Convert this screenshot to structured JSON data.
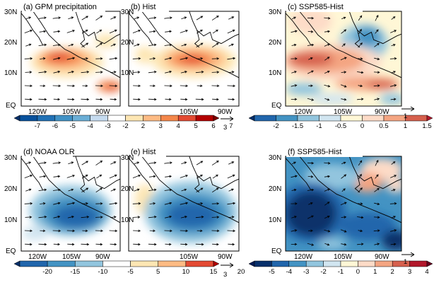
{
  "panels": [
    {
      "id": "a",
      "title": "(a) GPM precipitation",
      "field": "precip_obs",
      "show_ylabels": true
    },
    {
      "id": "b",
      "title": "(b) Hist",
      "field": "precip_hist",
      "show_ylabels": false
    },
    {
      "id": "c",
      "title": "(c) SSP585-Hist",
      "field": "precip_diff",
      "show_ylabels": true
    },
    {
      "id": "d",
      "title": "(d) NOAA OLR",
      "field": "olr_obs",
      "show_ylabels": true
    },
    {
      "id": "e",
      "title": "(e) Hist",
      "field": "olr_hist",
      "show_ylabels": false
    },
    {
      "id": "f",
      "title": "(f) SSP585-Hist",
      "field": "olr_diff",
      "show_ylabels": true
    }
  ],
  "lat_labels": [
    "30N",
    "20N",
    "10N",
    "EQ"
  ],
  "lon_labels": [
    "120W",
    "105W",
    "90W"
  ],
  "colorbars": [
    {
      "id": "precip",
      "ticks": [
        "-7",
        "-6",
        "-5",
        "-4",
        "-3",
        "-2",
        "2",
        "3",
        "4",
        "5",
        "6",
        "7"
      ],
      "colors": [
        "#08306b",
        "#08519c",
        "#2171b5",
        "#4292c6",
        "#6baed6",
        "#c6dbef",
        "#ffffff",
        "#fde6b3",
        "#fdbb84",
        "#f4874b",
        "#e34a33",
        "#b30000",
        "#7f0000"
      ]
    },
    {
      "id": "precip_diff",
      "ticks": [
        "-2",
        "-1.5",
        "-1",
        "-0.5",
        "0",
        "0.5",
        "1",
        "1.5",
        "2"
      ],
      "colors": [
        "#08306b",
        "#2166ac",
        "#4393c3",
        "#92c5de",
        "#d1e5f0",
        "#fff7d6",
        "#fddbc7",
        "#f4a582",
        "#d6604d",
        "#b2182b"
      ]
    },
    {
      "id": "olr",
      "ticks": [
        "-20",
        "-15",
        "-10",
        "-5",
        "5",
        "10",
        "15",
        "20"
      ],
      "colors": [
        "#08306b",
        "#2166ac",
        "#4393c3",
        "#92c5de",
        "#ffffff",
        "#fde6b3",
        "#fdbb84",
        "#e34a33",
        "#b30000"
      ]
    },
    {
      "id": "olr_diff",
      "ticks": [
        "-5",
        "-4",
        "-3",
        "-2",
        "-1",
        "0",
        "1",
        "2",
        "3",
        "4",
        "5"
      ],
      "colors": [
        "#081d58",
        "#08306b",
        "#2166ac",
        "#4393c3",
        "#92c5de",
        "#d1e5f0",
        "#fff7d6",
        "#fddbc7",
        "#f4a582",
        "#d6604d",
        "#b2182b",
        "#67001f"
      ]
    }
  ],
  "ref_vectors": [
    {
      "id": "ref1",
      "label": "3"
    },
    {
      "id": "ref2",
      "label": "1"
    },
    {
      "id": "ref3",
      "label": "3"
    },
    {
      "id": "ref4",
      "label": "1"
    }
  ],
  "colors": {
    "frame": "#000000",
    "coast": "#000000",
    "arrow": "#000000"
  }
}
